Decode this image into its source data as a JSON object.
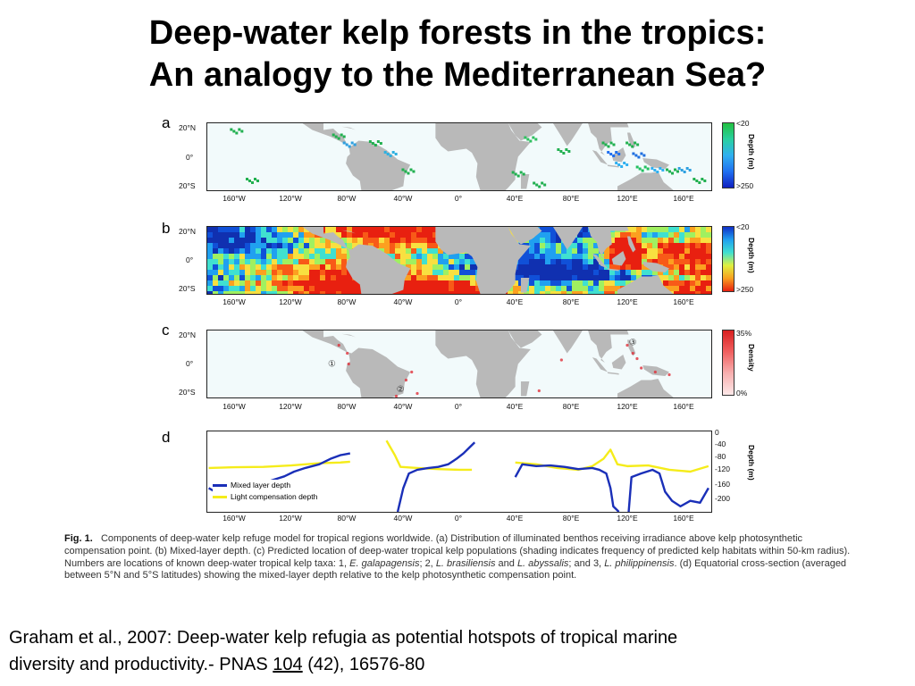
{
  "slide": {
    "title_line1": "Deep-water kelp forests in the tropics:",
    "title_line2": "An analogy to the Mediterranean Sea?"
  },
  "figure": {
    "panels": {
      "a": {
        "letter": "a",
        "colorbar": {
          "top": "<20",
          "bottom": ">250",
          "title": "Depth (m)"
        }
      },
      "b": {
        "letter": "b",
        "colorbar": {
          "top": "<20",
          "bottom": ">250",
          "title": "Depth (m)"
        }
      },
      "c": {
        "letter": "c",
        "colorbar": {
          "top": "35%",
          "bottom": "0%",
          "title": "Density"
        },
        "site_markers": [
          "①",
          "②",
          "③"
        ]
      },
      "d": {
        "letter": "d",
        "y_axis_title": "Depth (m)",
        "y_ticks": [
          "0",
          "-40",
          "-80",
          "-120",
          "-160",
          "-200"
        ],
        "legend": {
          "mixed_layer": "Mixed layer depth",
          "light_compensation": "Light compensation depth"
        }
      }
    },
    "lat_labels": [
      "20°N",
      "0°",
      "20°S"
    ],
    "lon_labels": [
      "160°W",
      "120°W",
      "80°W",
      "40°W",
      "0°",
      "40°E",
      "80°E",
      "120°E",
      "160°E"
    ],
    "colors": {
      "mixed_layer": "#1a2fb8",
      "light_compensation": "#f5ec1a",
      "land": "#b9b9b9",
      "density_high": "#e0303a"
    }
  },
  "chart_data": {
    "type": "line",
    "title": "",
    "xlabel": "",
    "ylabel": "Depth (m)",
    "ylim": [
      -215,
      5
    ],
    "x_ticks": [
      "160°W",
      "120°W",
      "80°W",
      "40°W",
      "0°",
      "40°E",
      "80°E",
      "120°E",
      "160°E"
    ],
    "series": [
      {
        "name": "Mixed layer depth",
        "segments": [
          [
            [
              -179,
              -150
            ],
            [
              -172,
              -165
            ],
            [
              -163,
              -160
            ],
            [
              -155,
              -150
            ],
            [
              -145,
              -145
            ],
            [
              -135,
              -130
            ],
            [
              -125,
              -118
            ],
            [
              -118,
              -105
            ],
            [
              -110,
              -95
            ],
            [
              -100,
              -85
            ],
            [
              -92,
              -70
            ],
            [
              -85,
              -60
            ],
            [
              -78,
              -55
            ]
          ],
          [
            [
              -44,
              -215
            ],
            [
              -40,
              -150
            ],
            [
              -36,
              -110
            ],
            [
              -30,
              -100
            ],
            [
              -22,
              -95
            ],
            [
              -15,
              -92
            ],
            [
              -8,
              -85
            ],
            [
              -2,
              -70
            ],
            [
              3,
              -55
            ],
            [
              7,
              -40
            ],
            [
              11,
              -25
            ]
          ],
          [
            [
              40,
              -120
            ],
            [
              45,
              -85
            ],
            [
              55,
              -90
            ],
            [
              65,
              -88
            ],
            [
              75,
              -92
            ],
            [
              85,
              -98
            ],
            [
              95,
              -95
            ],
            [
              100,
              -100
            ],
            [
              105,
              -110
            ],
            [
              108,
              -150
            ],
            [
              110,
              -200
            ],
            [
              114,
              -215
            ]
          ],
          [
            [
              121,
              -215
            ],
            [
              123,
              -120
            ],
            [
              130,
              -110
            ],
            [
              138,
              -100
            ],
            [
              143,
              -110
            ],
            [
              147,
              -160
            ],
            [
              152,
              -185
            ],
            [
              158,
              -200
            ],
            [
              165,
              -185
            ],
            [
              172,
              -190
            ],
            [
              178,
              -150
            ]
          ]
        ]
      },
      {
        "name": "Light compensation depth",
        "segments": [
          [
            [
              -179,
              -95
            ],
            [
              -160,
              -93
            ],
            [
              -140,
              -92
            ],
            [
              -120,
              -88
            ],
            [
              -100,
              -82
            ],
            [
              -85,
              -80
            ],
            [
              -78,
              -78
            ]
          ],
          [
            [
              -52,
              -20
            ],
            [
              -46,
              -60
            ],
            [
              -42,
              -92
            ],
            [
              -30,
              -95
            ],
            [
              -15,
              -98
            ],
            [
              0,
              -100
            ],
            [
              9,
              -100
            ]
          ],
          [
            [
              40,
              -80
            ],
            [
              55,
              -85
            ],
            [
              70,
              -95
            ],
            [
              85,
              -100
            ],
            [
              95,
              -90
            ],
            [
              103,
              -70
            ],
            [
              108,
              -45
            ],
            [
              113,
              -85
            ],
            [
              120,
              -90
            ],
            [
              135,
              -88
            ],
            [
              150,
              -100
            ],
            [
              165,
              -105
            ],
            [
              178,
              -90
            ]
          ]
        ]
      }
    ]
  },
  "caption": {
    "fig_label": "Fig. 1.",
    "text_1": "Components of deep-water kelp refuge model for tropical regions worldwide. (a) Distribution of illuminated benthos receiving irradiance above kelp photosynthetic compensation point. (b) Mixed-layer depth. (c) Predicted location of deep-water tropical kelp populations (shading indicates frequency of predicted kelp habitats within 50-km radius). Numbers are locations of known deep-water tropical kelp taxa: 1,",
    "taxon_1": "E. galapagensis",
    "text_2": "; 2,",
    "taxon_2": "L. brasiliensis",
    "text_3": "and",
    "taxon_3": "L. abyssalis",
    "text_4": "; and 3,",
    "taxon_4": "L. philippinensis",
    "text_5": ". (d) Equatorial cross-section (averaged between 5°N and 5°S latitudes) showing the mixed-layer depth relative to the kelp photosynthetic compensation point."
  },
  "citation": {
    "line1": "Graham et al., 2007: Deep-water kelp refugia as potential hotspots of tropical marine",
    "line2_before": "diversity and productivity.- PNAS ",
    "volume": "104",
    "line2_after": " (42), 16576-80"
  }
}
